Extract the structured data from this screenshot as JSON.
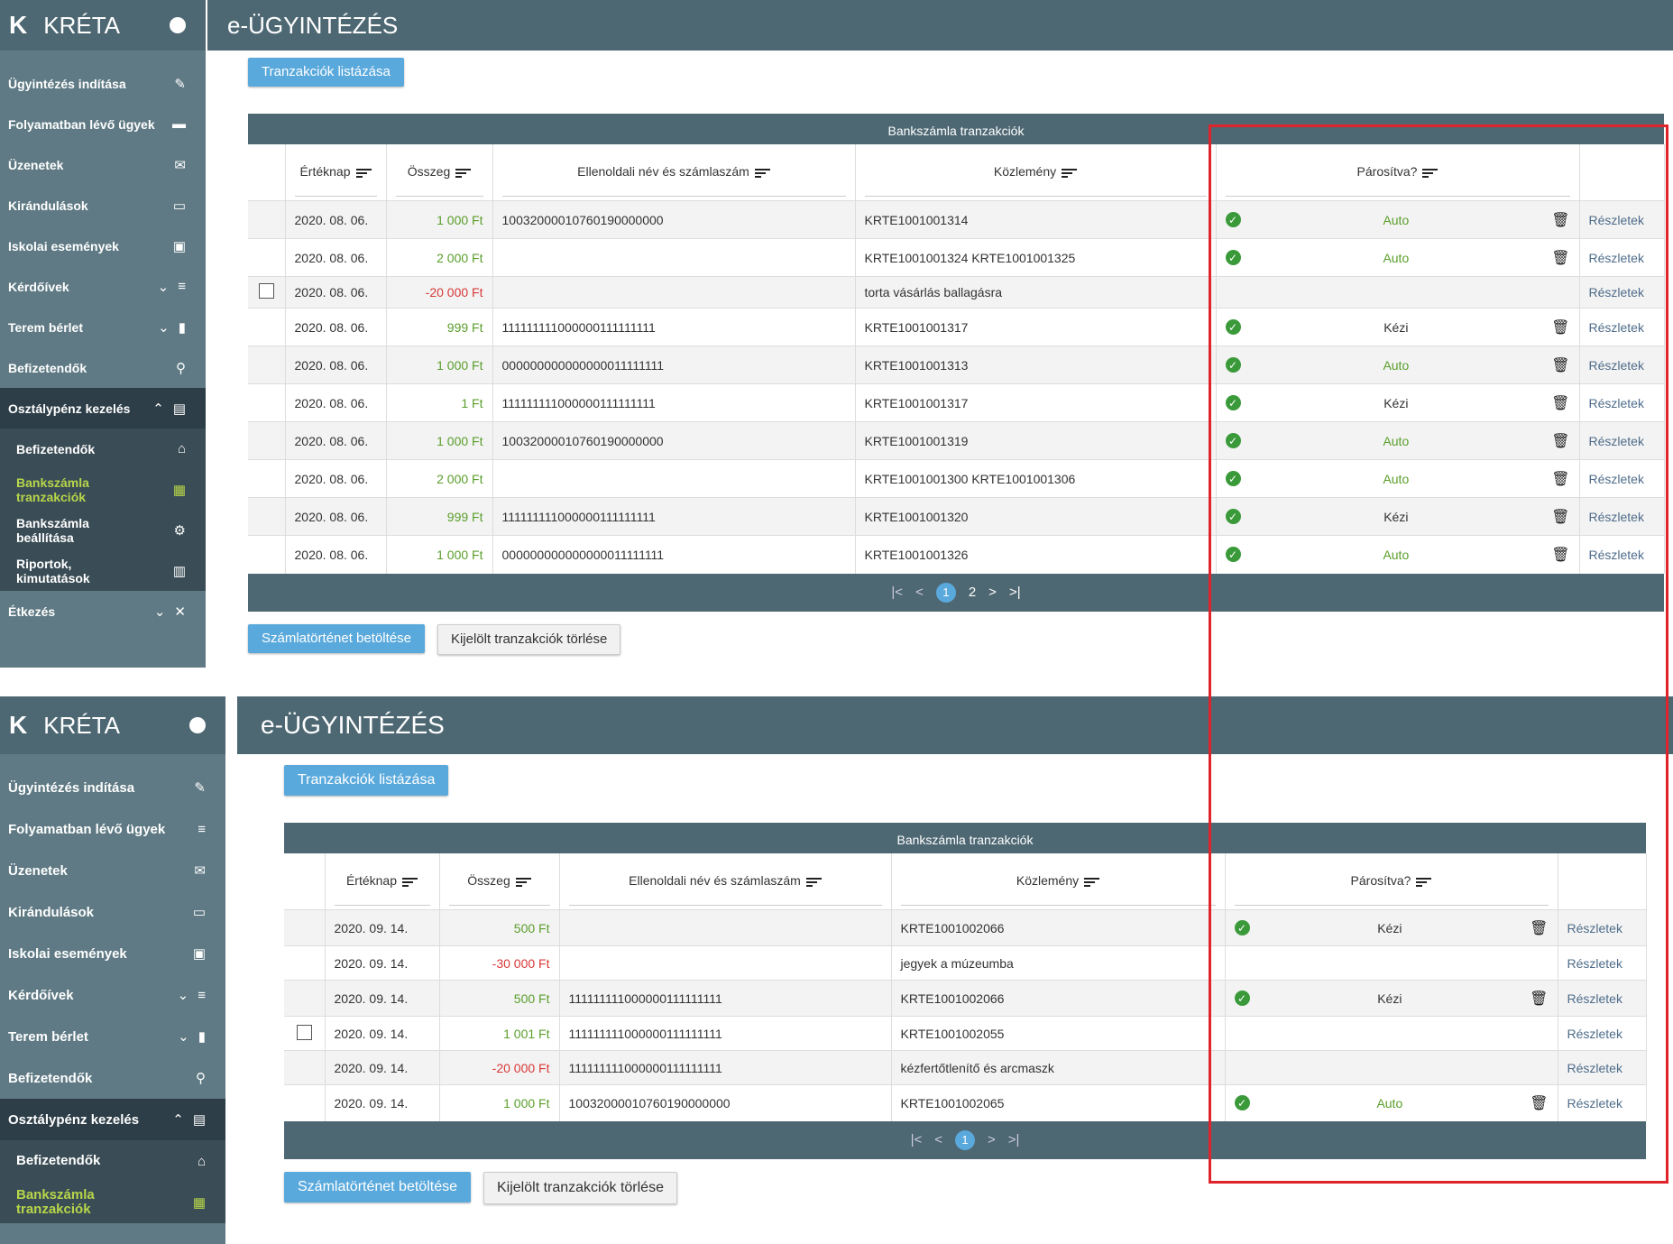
{
  "app": {
    "brand": "KRÉTA",
    "title": "e-ÜGYINTÉZÉS"
  },
  "sidebar": {
    "items": [
      {
        "label": "Ügyintézés indítása",
        "icon": "edit-note-icon"
      },
      {
        "label": "Folyamatban lévő ügyek",
        "icon": "list-icon"
      },
      {
        "label": "Üzenetek",
        "icon": "mail-icon"
      },
      {
        "label": "Kirándulások",
        "icon": "bed-icon"
      },
      {
        "label": "Iskolai események",
        "icon": "calendar-icon"
      },
      {
        "label": "Kérdőívek",
        "icon": "menu-lines-icon"
      },
      {
        "label": "Terem bérlet",
        "icon": "door-icon"
      },
      {
        "label": "Befizetendők",
        "icon": "stamp-icon"
      },
      {
        "label": "Osztálypénz kezelés",
        "icon": "wallet-icon"
      }
    ],
    "subitems": [
      {
        "label": "Befizetendők",
        "icon": "bank-icon"
      },
      {
        "label": "Bankszámla tranzakciók",
        "icon": "table-icon"
      },
      {
        "label": "Bankszámla beállítása",
        "icon": "settings-box-icon"
      },
      {
        "label": "Riportok, kimutatások",
        "icon": "chart-icon"
      }
    ],
    "extra": {
      "label": "Étkezés",
      "icon": "cutlery-icon"
    }
  },
  "buttons": {
    "list": "Tranzakciók listázása",
    "load": "Számlatörténet betöltése",
    "delete": "Kijelölt tranzakciók törlése"
  },
  "grid": {
    "title": "Bankszámla tranzakciók",
    "headers": {
      "date": "Értéknap",
      "amount": "Összeg",
      "counterparty": "Ellenoldali név és számlaszám",
      "note": "Közlemény",
      "paired": "Párosítva?"
    },
    "details": "Részletek"
  },
  "panel1": {
    "rows": [
      {
        "date": "2020. 08. 06.",
        "amount": "1 000 Ft",
        "sign": "pos",
        "account": "10032000010760190000000",
        "note": "KRTE1001001314",
        "paired": "Auto",
        "checkbox": false
      },
      {
        "date": "2020. 08. 06.",
        "amount": "2 000 Ft",
        "sign": "pos",
        "account": "",
        "note": "KRTE1001001324 KRTE1001001325",
        "paired": "Auto",
        "checkbox": false
      },
      {
        "date": "2020. 08. 06.",
        "amount": "-20 000 Ft",
        "sign": "neg",
        "account": "",
        "note": "torta vásárlás ballagásra",
        "paired": "",
        "checkbox": true
      },
      {
        "date": "2020. 08. 06.",
        "amount": "999 Ft",
        "sign": "pos",
        "account": "111111111000000111111111",
        "note": "KRTE1001001317",
        "paired": "Kézi",
        "checkbox": false
      },
      {
        "date": "2020. 08. 06.",
        "amount": "1 000 Ft",
        "sign": "pos",
        "account": "000000000000000011111111",
        "note": "KRTE1001001313",
        "paired": "Auto",
        "checkbox": false
      },
      {
        "date": "2020. 08. 06.",
        "amount": "1 Ft",
        "sign": "pos",
        "account": "111111111000000111111111",
        "note": "KRTE1001001317",
        "paired": "Kézi",
        "checkbox": false
      },
      {
        "date": "2020. 08. 06.",
        "amount": "1 000 Ft",
        "sign": "pos",
        "account": "10032000010760190000000",
        "note": "KRTE1001001319",
        "paired": "Auto",
        "checkbox": false
      },
      {
        "date": "2020. 08. 06.",
        "amount": "2 000 Ft",
        "sign": "pos",
        "account": "",
        "note": "KRTE1001001300 KRTE1001001306",
        "paired": "Auto",
        "checkbox": false
      },
      {
        "date": "2020. 08. 06.",
        "amount": "999 Ft",
        "sign": "pos",
        "account": "111111111000000111111111",
        "note": "KRTE1001001320",
        "paired": "Kézi",
        "checkbox": false
      },
      {
        "date": "2020. 08. 06.",
        "amount": "1 000 Ft",
        "sign": "pos",
        "account": "000000000000000011111111",
        "note": "KRTE1001001326",
        "paired": "Auto",
        "checkbox": false
      }
    ],
    "pages": [
      "1",
      "2"
    ],
    "current_page": "1"
  },
  "panel2": {
    "rows": [
      {
        "date": "2020. 09. 14.",
        "amount": "500 Ft",
        "sign": "pos",
        "account": "",
        "note": "KRTE1001002066",
        "paired": "Kézi",
        "checkbox": false
      },
      {
        "date": "2020. 09. 14.",
        "amount": "-30 000 Ft",
        "sign": "neg",
        "account": "",
        "note": "jegyek a múzeumba",
        "paired": "",
        "checkbox": false
      },
      {
        "date": "2020. 09. 14.",
        "amount": "500 Ft",
        "sign": "pos",
        "account": "111111111000000111111111",
        "note": "KRTE1001002066",
        "paired": "Kézi",
        "checkbox": false
      },
      {
        "date": "2020. 09. 14.",
        "amount": "1 001 Ft",
        "sign": "pos",
        "account": "111111111000000111111111",
        "note": "KRTE1001002055",
        "paired": "",
        "checkbox": true
      },
      {
        "date": "2020. 09. 14.",
        "amount": "-20 000 Ft",
        "sign": "neg",
        "account": "111111111000000111111111",
        "note": "kézfertőtlenítő és arcmaszk",
        "paired": "",
        "checkbox": false
      },
      {
        "date": "2020. 09. 14.",
        "amount": "1 000 Ft",
        "sign": "pos",
        "account": "10032000010760190000000",
        "note": "KRTE1001002065",
        "paired": "Auto",
        "checkbox": false
      }
    ],
    "pages": [
      "1"
    ],
    "current_page": "1"
  },
  "colors": {
    "header": "#4e6873",
    "sidebar": "#5f7a84",
    "primary": "#5aa9dc",
    "positive": "#5a9e2b",
    "negative": "#d93838",
    "highlight_box": "#e0242c"
  }
}
